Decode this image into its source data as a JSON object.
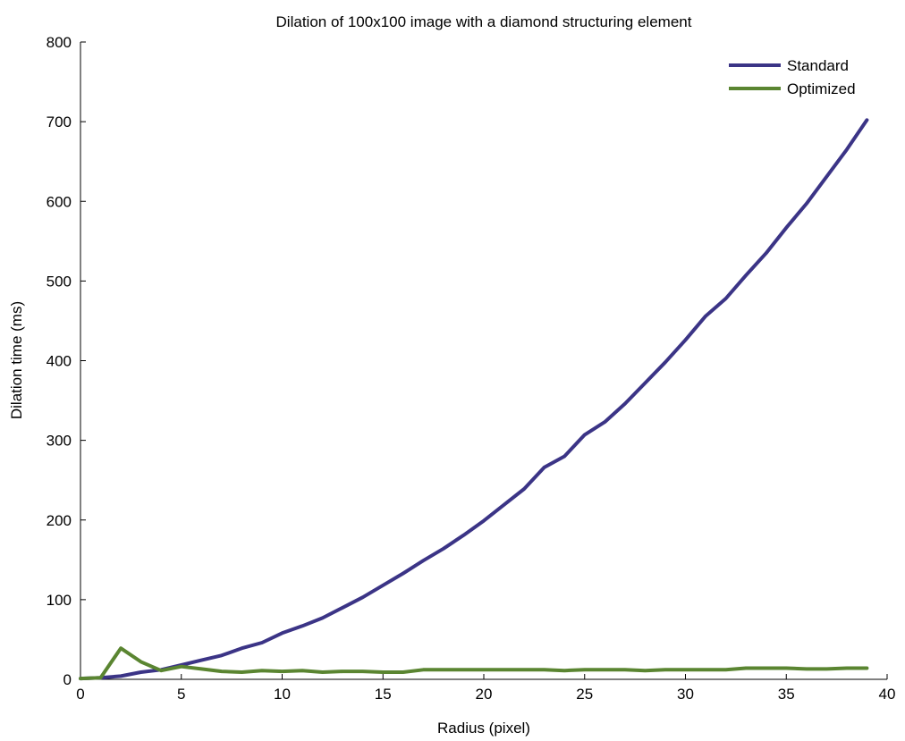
{
  "chart_data": {
    "type": "line",
    "title": "Dilation of 100x100 image with a diamond structuring element",
    "xlabel": "Radius (pixel)",
    "ylabel": "Dilation time (ms)",
    "xlim": [
      0,
      40
    ],
    "ylim": [
      0,
      800
    ],
    "xticks": [
      0,
      5,
      10,
      15,
      20,
      25,
      30,
      35,
      40
    ],
    "yticks": [
      0,
      100,
      200,
      300,
      400,
      500,
      600,
      700,
      800
    ],
    "grid": false,
    "legend_position": "top-right",
    "x": [
      0,
      1,
      2,
      3,
      4,
      5,
      6,
      7,
      8,
      9,
      10,
      11,
      12,
      13,
      14,
      15,
      16,
      17,
      18,
      19,
      20,
      21,
      22,
      23,
      24,
      25,
      26,
      27,
      28,
      29,
      30,
      31,
      32,
      33,
      34,
      35,
      36,
      37,
      38,
      39
    ],
    "series": [
      {
        "name": "Standard",
        "color": "#3b3486",
        "values": [
          1,
          2,
          4,
          9,
          12,
          18,
          24,
          30,
          39,
          46,
          58,
          67,
          77,
          90,
          103,
          118,
          133,
          149,
          164,
          181,
          199,
          219,
          239,
          266,
          280,
          307,
          323,
          346,
          372,
          398,
          426,
          456,
          478,
          507,
          535,
          567,
          597,
          631,
          665,
          702
        ]
      },
      {
        "name": "Optimized",
        "color": "#5a8531",
        "values": [
          1,
          2,
          39,
          22,
          11,
          16,
          13,
          10,
          9,
          11,
          10,
          11,
          9,
          10,
          10,
          9,
          9,
          12,
          12,
          12,
          12,
          12,
          12,
          12,
          11,
          12,
          12,
          12,
          11,
          12,
          12,
          12,
          12,
          14,
          14,
          14,
          13,
          13,
          14,
          14
        ]
      }
    ]
  }
}
